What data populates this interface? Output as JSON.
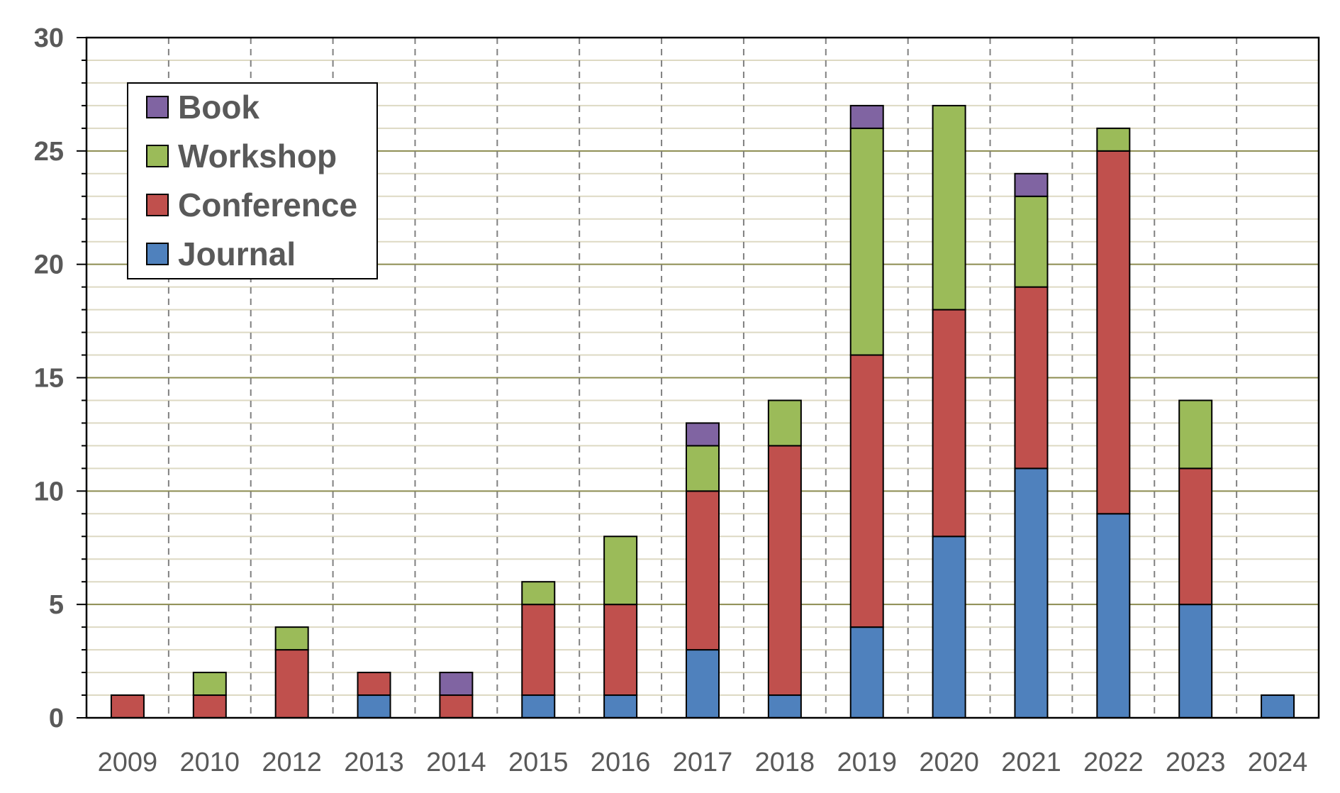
{
  "chart_data": {
    "type": "bar",
    "stacked": true,
    "categories": [
      "2009",
      "2010",
      "2012",
      "2013",
      "2014",
      "2015",
      "2016",
      "2017",
      "2018",
      "2019",
      "2020",
      "2021",
      "2022",
      "2023",
      "2024"
    ],
    "series": [
      {
        "name": "Journal",
        "color": "#4F81BD",
        "values": [
          0,
          0,
          0,
          1,
          0,
          1,
          1,
          3,
          1,
          4,
          8,
          11,
          9,
          5,
          1
        ]
      },
      {
        "name": "Conference",
        "color": "#C0504D",
        "values": [
          1,
          1,
          3,
          1,
          1,
          4,
          4,
          7,
          11,
          12,
          10,
          8,
          16,
          6,
          0
        ]
      },
      {
        "name": "Workshop",
        "color": "#9BBB59",
        "values": [
          0,
          1,
          1,
          0,
          0,
          1,
          3,
          2,
          2,
          10,
          9,
          4,
          1,
          3,
          0
        ]
      },
      {
        "name": "Book",
        "color": "#8064A2",
        "values": [
          0,
          0,
          0,
          0,
          1,
          0,
          0,
          1,
          0,
          1,
          0,
          1,
          0,
          0,
          0
        ]
      }
    ],
    "legend_order": [
      "Book",
      "Workshop",
      "Conference",
      "Journal"
    ],
    "legend_position": "top-left",
    "ylim": [
      0,
      30
    ],
    "yticks": [
      0,
      5,
      10,
      15,
      20,
      25,
      30
    ],
    "xlabel": "",
    "ylabel": "",
    "title": "",
    "grid": {
      "major_y": true,
      "minor_y": true,
      "vertical_dashed": true
    },
    "colors": {
      "major_grid": "#8C8C50",
      "minor_grid": "#DDD9C3",
      "vgrid": "#808080",
      "axis": "#000000",
      "text": "#595959"
    }
  }
}
